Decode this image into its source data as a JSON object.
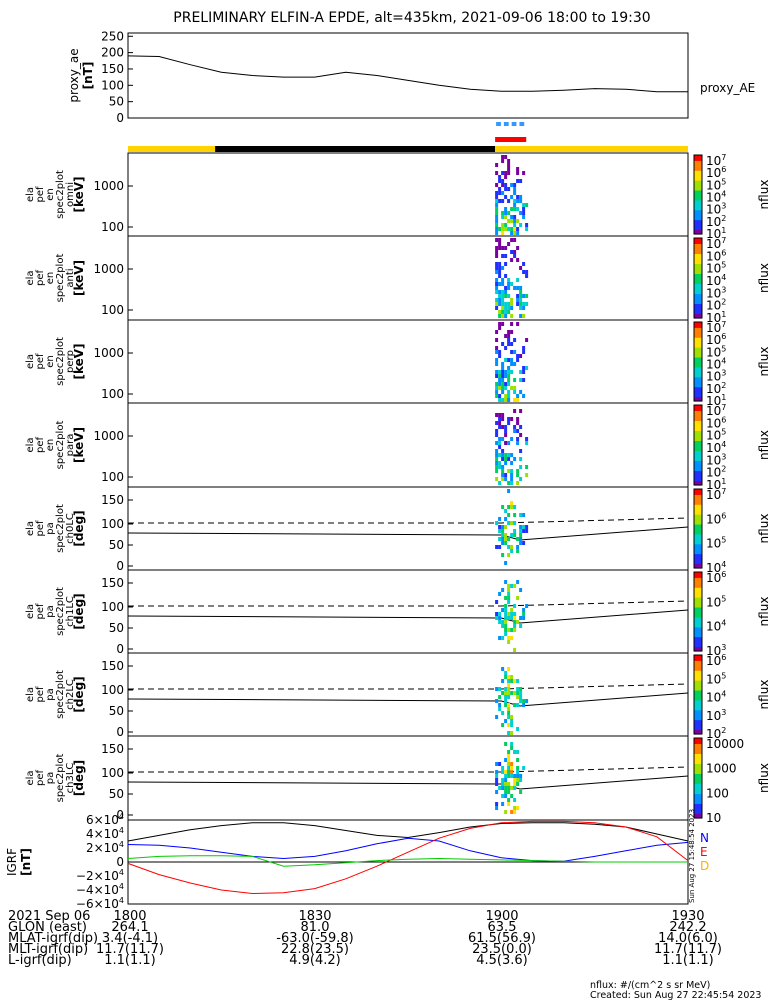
{
  "title": "PRELIMINARY ELFIN-A EPDE, alt=435km, 2021-09-06 18:00 to 19:30",
  "time_range": [
    "18:00",
    "19:30"
  ],
  "chart_data": [
    {
      "type": "line",
      "name": "proxy_ae",
      "ylabel": [
        "proxy_ae",
        "[nT]"
      ],
      "legend": "proxy_AE",
      "ylim": [
        0,
        260
      ],
      "yticks": [
        "250",
        "200",
        "150",
        "100",
        "50",
        "0"
      ],
      "ytick_values": [
        250,
        200,
        150,
        100,
        50,
        0
      ],
      "x": [
        "18:00",
        "18:05",
        "18:10",
        "18:15",
        "18:20",
        "18:25",
        "18:30",
        "18:35",
        "18:40",
        "18:45",
        "18:50",
        "18:55",
        "19:00",
        "19:05",
        "19:10",
        "19:15",
        "19:20",
        "19:25",
        "19:30"
      ],
      "y": [
        190,
        188,
        163,
        140,
        130,
        125,
        125,
        140,
        130,
        115,
        100,
        88,
        82,
        82,
        85,
        90,
        88,
        80,
        80
      ]
    },
    {
      "type": "heatmap",
      "name": "spec_omni",
      "ylabel": [
        "ela",
        "pef",
        "en",
        "spec2plot",
        "omni",
        "[keV]"
      ],
      "scale": "log",
      "yticks": [
        "1000",
        "100"
      ],
      "colorbar": {
        "label": "nflux",
        "ticks": [
          "10^7",
          "10^6",
          "10^5",
          "10^4",
          "10^3",
          "10^2",
          "10^1"
        ]
      }
    },
    {
      "type": "heatmap",
      "name": "spec_anti",
      "ylabel": [
        "ela",
        "pef",
        "en",
        "spec2plot",
        "anti",
        "[keV]"
      ],
      "scale": "log",
      "yticks": [
        "1000",
        "100"
      ],
      "colorbar": {
        "label": "nflux",
        "ticks": [
          "10^7",
          "10^6",
          "10^5",
          "10^4",
          "10^3",
          "10^2",
          "10^1"
        ]
      }
    },
    {
      "type": "heatmap",
      "name": "spec_perp",
      "ylabel": [
        "ela",
        "pef",
        "en",
        "spec2plot",
        "perp",
        "[keV]"
      ],
      "scale": "log",
      "yticks": [
        "1000",
        "100"
      ],
      "colorbar": {
        "label": "nflux",
        "ticks": [
          "10^7",
          "10^6",
          "10^5",
          "10^4",
          "10^3",
          "10^2",
          "10^1"
        ]
      }
    },
    {
      "type": "heatmap",
      "name": "spec_para",
      "ylabel": [
        "ela",
        "pef",
        "en",
        "spec2plot",
        "para",
        "[keV]"
      ],
      "scale": "log",
      "yticks": [
        "1000",
        "100"
      ],
      "colorbar": {
        "label": "nflux",
        "ticks": [
          "10^7",
          "10^6",
          "10^5",
          "10^4",
          "10^3",
          "10^2",
          "10^1"
        ]
      }
    },
    {
      "type": "heatmap",
      "name": "pa_ch0",
      "ylabel": [
        "ela",
        "pef",
        "pa",
        "spec2plot",
        "ch0LC",
        "[deg]"
      ],
      "yticks": [
        "150",
        "100",
        "50",
        "0"
      ],
      "colorbar": {
        "label": "nflux",
        "ticks": [
          "10^7",
          "10^6",
          "10^5",
          "10^4"
        ]
      }
    },
    {
      "type": "heatmap",
      "name": "pa_ch1",
      "ylabel": [
        "ela",
        "pef",
        "pa",
        "spec2plot",
        "ch1LC",
        "[deg]"
      ],
      "yticks": [
        "150",
        "100",
        "50",
        "0"
      ],
      "colorbar": {
        "label": "nflux",
        "ticks": [
          "10^6",
          "10^5",
          "10^4",
          "10^3"
        ]
      }
    },
    {
      "type": "heatmap",
      "name": "pa_ch2",
      "ylabel": [
        "ela",
        "pef",
        "pa",
        "spec2plot",
        "ch2LC",
        "[deg]"
      ],
      "yticks": [
        "150",
        "100",
        "50",
        "0"
      ],
      "colorbar": {
        "label": "nflux",
        "ticks": [
          "10^6",
          "10^5",
          "10^4",
          "10^3",
          "10^2"
        ]
      }
    },
    {
      "type": "heatmap",
      "name": "pa_ch3",
      "ylabel": [
        "ela",
        "pef",
        "pa",
        "spec2plot",
        "ch3LC",
        "[deg]"
      ],
      "yticks": [
        "150",
        "100",
        "50",
        "0"
      ],
      "colorbar": {
        "label": "nflux",
        "ticks": [
          "10000",
          "1000",
          "100",
          "10"
        ]
      }
    },
    {
      "type": "line",
      "name": "igrf",
      "ylabel": [
        "IGRF",
        "[nT]"
      ],
      "ylim": [
        -60000,
        60000
      ],
      "yticks": [
        "6×10^4",
        "4×10^4",
        "2×10^4",
        "0",
        "−2×10^4",
        "−4×10^4",
        "−6×10^4"
      ],
      "ytick_values": [
        60000,
        40000,
        20000,
        0,
        -20000,
        -40000,
        -60000
      ],
      "legend": [
        "N",
        "E",
        "D"
      ],
      "legend_colors": [
        "#0000ff",
        "#ff0000",
        "#ffb000"
      ],
      "x": [
        "18:00",
        "18:05",
        "18:10",
        "18:15",
        "18:20",
        "18:25",
        "18:30",
        "18:35",
        "18:40",
        "18:45",
        "18:50",
        "18:55",
        "19:00",
        "19:05",
        "19:10",
        "19:15",
        "19:20",
        "19:25",
        "19:30"
      ],
      "series": [
        {
          "color": "#000000",
          "values": [
            30000,
            38000,
            46000,
            52000,
            56000,
            56000,
            52000,
            45000,
            38000,
            35000,
            42000,
            50000,
            55000,
            56000,
            56000,
            54000,
            50000,
            40000,
            30000
          ]
        },
        {
          "color": "#0000ff",
          "values": [
            25000,
            24000,
            20000,
            14000,
            8000,
            5000,
            8000,
            16000,
            26000,
            34000,
            30000,
            16000,
            6000,
            2000,
            1000,
            8000,
            16000,
            24000,
            28000
          ]
        },
        {
          "color": "#ff0000",
          "values": [
            -2000,
            -18000,
            -30000,
            -40000,
            -45000,
            -44000,
            -38000,
            -24000,
            -6000,
            14000,
            34000,
            48000,
            56000,
            58000,
            58000,
            56000,
            50000,
            36000,
            2000
          ]
        },
        {
          "color": "#00cc00",
          "values": [
            5000,
            8000,
            9000,
            9000,
            8000,
            -6000,
            -4000,
            -1000,
            2000,
            4000,
            5000,
            4000,
            3000,
            2000,
            1000,
            0,
            0,
            0,
            0
          ]
        }
      ]
    }
  ],
  "footer": {
    "rows": [
      [
        "2021 Sep 06",
        "1800",
        "1830",
        "1900",
        "1930"
      ],
      [
        "GLON (east)",
        "264.1",
        "81.0",
        "63.5",
        "242.2"
      ],
      [
        "MLAT-igrf(dip)",
        "3.4(-4.1)",
        "-63.0(-59.8)",
        "61.5(56.9)",
        "14.0(6.0)"
      ],
      [
        "MLT-igrf(dip)",
        "11.7(11.7)",
        "22.8(23.5)",
        "23.5(0.0)",
        "11.7(11.7)"
      ],
      [
        "L-igrf(dip)",
        "1.1(1.1)",
        "4.9(4.2)",
        "4.5(3.6)",
        "1.1(1.1)"
      ]
    ],
    "units_note": "nflux: #/(cm^2 s sr MeV)",
    "created": "Created: Sun Aug 27 22:45:54 2023",
    "vertical_note": "Sun Aug 27 15:48:54 2023"
  },
  "colors": {
    "ae_line": "#000000",
    "cyan_bar": "#3399ff",
    "red_bar": "#ff0000",
    "yellow_band": "#ffd200",
    "black_band": "#000000"
  }
}
